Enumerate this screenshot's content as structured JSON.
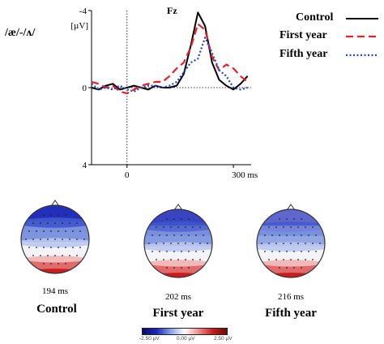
{
  "chart_data": {
    "type": "line",
    "title": "Fz",
    "contrast_label": "/æ/-/ʌ/",
    "y_unit": "[µV]",
    "y_ticks": [
      "-4",
      "0",
      "4"
    ],
    "x_ticks": [
      "0",
      "300 ms"
    ],
    "xlim": [
      -100,
      350
    ],
    "ylim": [
      4,
      -4
    ],
    "y_inverted": true,
    "x_unit": "ms",
    "series": [
      {
        "name": "Control",
        "color": "#000000",
        "style": "solid",
        "x": [
          -100,
          -80,
          -60,
          -40,
          -20,
          0,
          20,
          40,
          60,
          80,
          100,
          120,
          140,
          160,
          180,
          200,
          220,
          240,
          260,
          280,
          300,
          320,
          340
        ],
        "y": [
          0.0,
          0.1,
          -0.1,
          -0.2,
          0.1,
          0.0,
          -0.1,
          0.0,
          0.1,
          -0.1,
          0.0,
          0.0,
          -0.1,
          -0.7,
          -2.2,
          -3.9,
          -3.2,
          -1.3,
          -0.4,
          -0.1,
          0.1,
          -0.2,
          -0.6
        ]
      },
      {
        "name": "First year",
        "color": "#e8202a",
        "style": "dashed",
        "x": [
          -100,
          -80,
          -60,
          -40,
          -20,
          0,
          20,
          40,
          60,
          80,
          100,
          120,
          140,
          160,
          180,
          200,
          220,
          240,
          260,
          280,
          300,
          320,
          340
        ],
        "y": [
          -0.3,
          -0.2,
          0.0,
          -0.1,
          0.2,
          0.3,
          0.1,
          -0.1,
          -0.2,
          -0.3,
          -0.3,
          -0.6,
          -1.0,
          -1.3,
          -2.1,
          -3.3,
          -3.0,
          -1.6,
          -0.9,
          -1.2,
          -1.0,
          -0.6,
          -0.3
        ]
      },
      {
        "name": "Fifth year",
        "color": "#2244cc",
        "style": "dotted",
        "x": [
          -100,
          -80,
          -60,
          -40,
          -20,
          0,
          20,
          40,
          60,
          80,
          100,
          120,
          140,
          160,
          180,
          200,
          220,
          240,
          260,
          280,
          300,
          320,
          340
        ],
        "y": [
          -0.2,
          0.1,
          0.0,
          0.1,
          -0.1,
          0.1,
          0.2,
          0.0,
          -0.1,
          -0.1,
          0.0,
          -0.1,
          -0.3,
          -0.8,
          -1.3,
          -1.5,
          -2.6,
          -1.8,
          -0.9,
          -0.6,
          0.0,
          0.1,
          0.0
        ]
      }
    ],
    "legend_placement": "top-right"
  },
  "topomaps": [
    {
      "time": "194 ms",
      "label": "Control",
      "negativity": 0.95
    },
    {
      "time": "202 ms",
      "label": "First year",
      "negativity": 0.8
    },
    {
      "time": "216 ms",
      "label": "Fifth year",
      "negativity": 0.55
    }
  ],
  "colorbar": {
    "ticks": [
      "-2.50 µV",
      "0.00 µV",
      "2.50 µV"
    ],
    "colors": [
      "#1a28b8",
      "#ffffff",
      "#c81e1e"
    ]
  }
}
